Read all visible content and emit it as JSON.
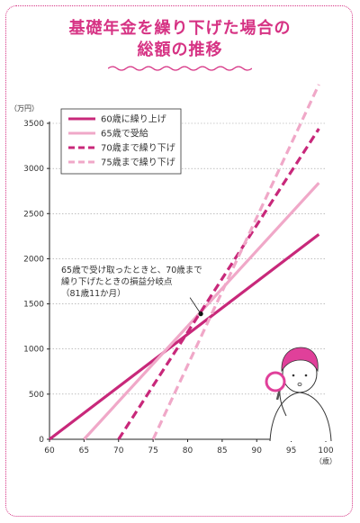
{
  "title": {
    "line1": "基礎年金を繰り下げた場合の",
    "line2": "総額の推移"
  },
  "colors": {
    "accent": "#d63384",
    "series_dark": "#c8287a",
    "series_light": "#f0a8c8"
  },
  "chart_data": {
    "type": "line",
    "title": "基礎年金を繰り下げた場合の総額の推移",
    "xlabel": "歳",
    "ylabel": "万円",
    "xlim": [
      60,
      100
    ],
    "ylim": [
      0,
      3500
    ],
    "x_ticks": [
      60,
      65,
      70,
      75,
      80,
      85,
      90,
      95,
      100
    ],
    "y_ticks": [
      0,
      500,
      1000,
      1500,
      2000,
      2500,
      3000,
      3500
    ],
    "grid": true,
    "legend_position": "top-left",
    "series": [
      {
        "name": "60歳に繰り上げ",
        "style": "solid",
        "color": "#c8287a",
        "points": [
          [
            60,
            0
          ],
          [
            99,
            2270
          ]
        ]
      },
      {
        "name": "65歳で受給",
        "style": "solid",
        "color": "#f0a8c8",
        "points": [
          [
            65,
            0
          ],
          [
            99,
            2840
          ]
        ]
      },
      {
        "name": "70歳まで繰り下げ",
        "style": "dashed",
        "color": "#c8287a",
        "points": [
          [
            70,
            0
          ],
          [
            99,
            3440
          ]
        ]
      },
      {
        "name": "75歳まで繰り下げ",
        "style": "dashed",
        "color": "#f0a8c8",
        "points": [
          [
            75,
            0
          ],
          [
            99,
            3930
          ]
        ]
      }
    ],
    "annotation": {
      "lines": [
        "65歳で受け取ったときと、70歳まで",
        "繰り下げたときの損益分岐点",
        "（81歳11か月）"
      ],
      "point": [
        81.9,
        1390
      ]
    }
  }
}
